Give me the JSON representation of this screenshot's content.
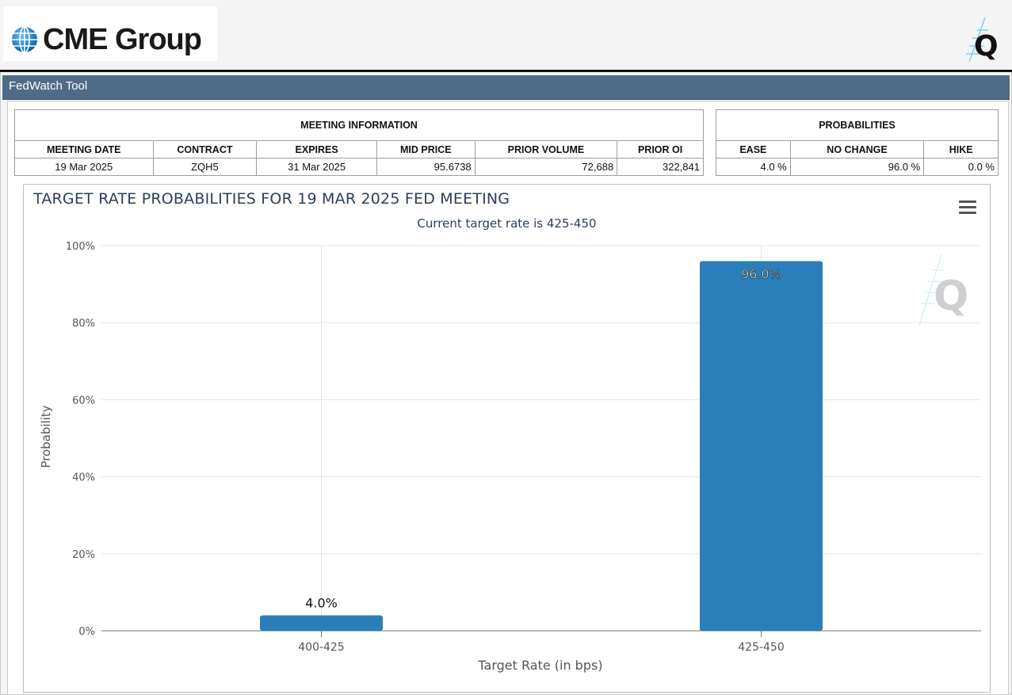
{
  "header": {
    "logo_text": "CME Group"
  },
  "toolbar": {
    "title": "FedWatch Tool"
  },
  "meeting_info": {
    "group_label": "MEETING INFORMATION",
    "columns": [
      "MEETING DATE",
      "CONTRACT",
      "EXPIRES",
      "MID PRICE",
      "PRIOR VOLUME",
      "PRIOR OI"
    ],
    "row": [
      "19 Mar 2025",
      "ZQH5",
      "31 Mar 2025",
      "95.6738",
      "72,688",
      "322,841"
    ]
  },
  "probabilities": {
    "group_label": "PROBABILITIES",
    "columns": [
      "EASE",
      "NO CHANGE",
      "HIKE"
    ],
    "row": [
      "4.0 %",
      "96.0 %",
      "0.0 %"
    ]
  },
  "chart_data": {
    "type": "bar",
    "title": "TARGET RATE PROBABILITIES FOR 19 MAR 2025 FED MEETING",
    "subtitle": "Current target rate is 425-450",
    "xlabel": "Target Rate (in bps)",
    "ylabel": "Probability",
    "categories": [
      "400-425",
      "425-450"
    ],
    "values": [
      4.0,
      96.0
    ],
    "data_labels": [
      "4.0%",
      "96.0%"
    ],
    "ylim": [
      0,
      100
    ],
    "yticks": [
      "0%",
      "20%",
      "40%",
      "60%",
      "80%",
      "100%"
    ],
    "bar_color": "#2a7fb9",
    "grid": true,
    "legend": "none"
  }
}
